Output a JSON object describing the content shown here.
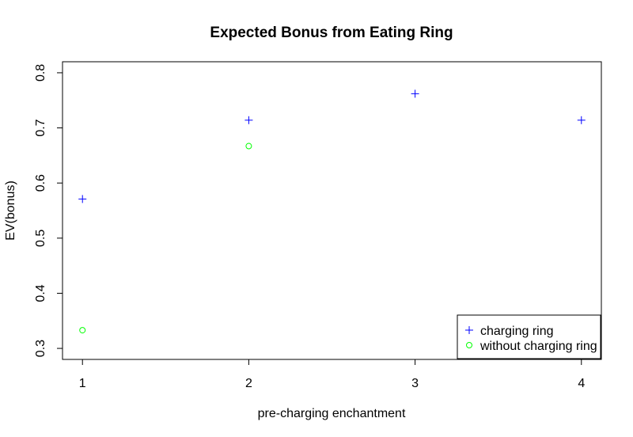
{
  "chart_data": {
    "type": "scatter",
    "title": "Expected Bonus from Eating Ring",
    "xlabel": "pre-charging enchantment",
    "ylabel": "EV(bonus)",
    "xlim": [
      0.88,
      4.12
    ],
    "ylim": [
      0.28,
      0.82
    ],
    "x_ticks": [
      "1",
      "2",
      "3",
      "4"
    ],
    "y_ticks": [
      "0.3",
      "0.4",
      "0.5",
      "0.6",
      "0.7",
      "0.8"
    ],
    "grid": false,
    "legend_position": "bottom-right",
    "series": [
      {
        "name": "charging ring",
        "marker": "plus",
        "color": "#0000ff",
        "x": [
          1,
          2,
          3,
          4
        ],
        "y": [
          0.571,
          0.714,
          0.762,
          0.714
        ]
      },
      {
        "name": "without charging ring",
        "marker": "circle",
        "color": "#00ff00",
        "x": [
          1,
          2
        ],
        "y": [
          0.333,
          0.667
        ]
      }
    ]
  }
}
